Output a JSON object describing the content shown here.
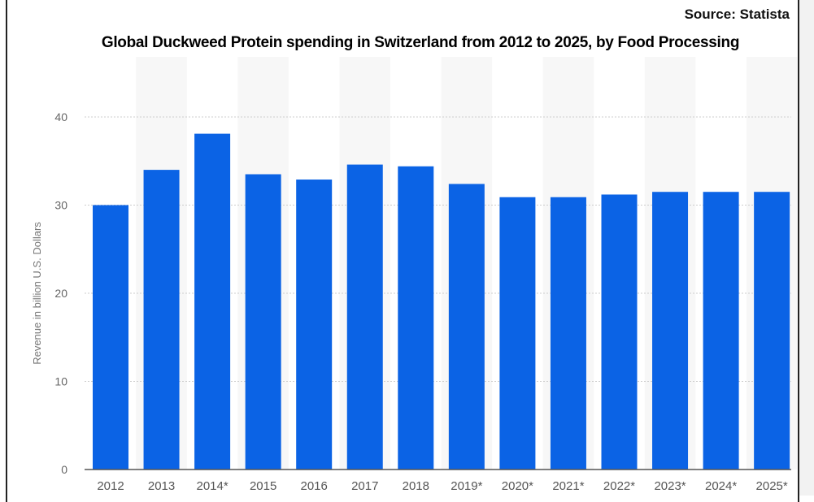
{
  "chart_data": {
    "type": "bar",
    "title": "Global Duckweed Protein spending in Switzerland from 2012 to 2025, by Food Processing",
    "xlabel": "",
    "ylabel": "Revenue in billion U.S. Dollars",
    "ylim": [
      0,
      40
    ],
    "yticks": [
      0,
      10,
      20,
      30,
      40
    ],
    "grid": true,
    "categories": [
      "2012",
      "2013",
      "2014*",
      "2015",
      "2016",
      "2017",
      "2018",
      "2019*",
      "2020*",
      "2021*",
      "2022*",
      "2023*",
      "2024*",
      "2025*"
    ],
    "values": [
      30.0,
      34.0,
      38.1,
      33.5,
      32.9,
      34.6,
      34.4,
      32.4,
      30.9,
      30.9,
      31.2,
      31.5,
      31.5,
      31.5
    ],
    "bar_color": "#0b63e5",
    "source": "Source: Statista"
  }
}
